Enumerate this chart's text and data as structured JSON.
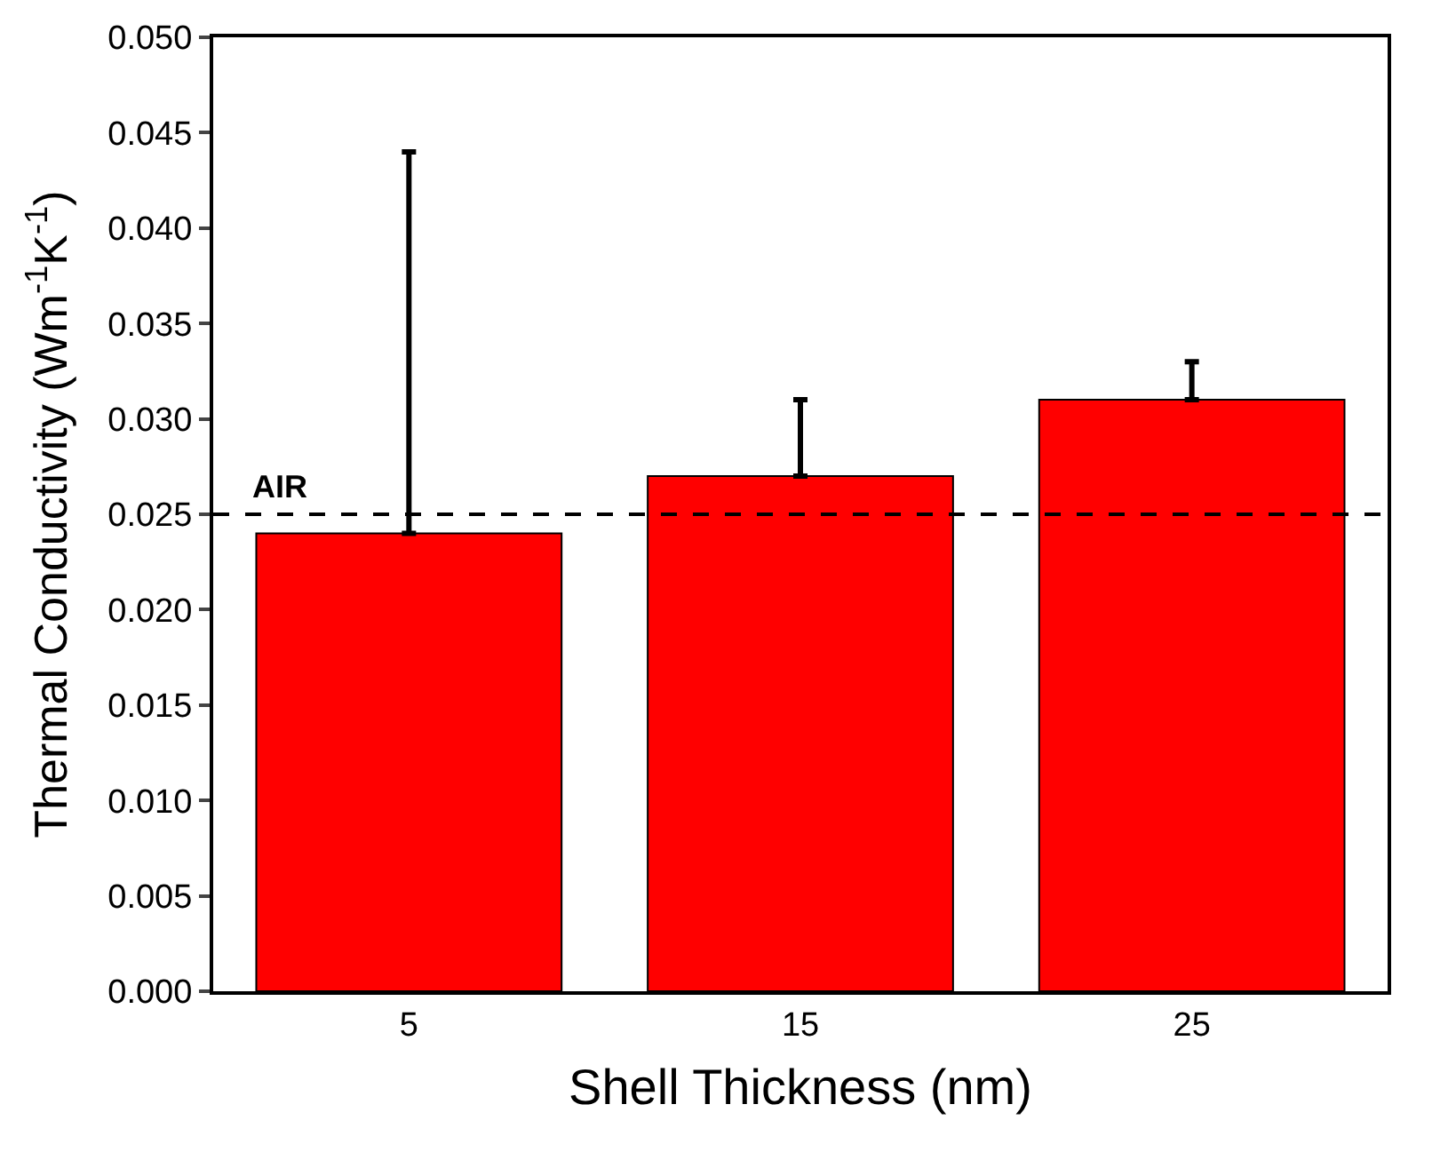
{
  "chart_data": {
    "type": "bar",
    "xlabel": "Shell Thickness (nm)",
    "ylabel": "Thermal Conductivity (Wm$^{-1}$K$^{-1}$)",
    "categories": [
      "5",
      "15",
      "25"
    ],
    "series": [
      {
        "color": "#ff0000",
        "values": [
          0.024,
          0.027,
          0.031
        ],
        "errors": [
          [
            0.024,
            0.044
          ],
          [
            0.027,
            0.031
          ],
          [
            0.031,
            0.033
          ]
        ]
      }
    ],
    "ylim": [
      0,
      0.05
    ],
    "yticks": [
      {
        "value": 0,
        "label": "0.000"
      },
      {
        "value": 0.005,
        "label": "0.005"
      },
      {
        "value": 0.01,
        "label": "0.010"
      },
      {
        "value": 0.015,
        "label": "0.015"
      },
      {
        "value": 0.02,
        "label": "0.020"
      },
      {
        "value": 0.025,
        "label": "0.025"
      },
      {
        "value": 0.03,
        "label": "0.030"
      },
      {
        "value": 0.035,
        "label": "0.035"
      },
      {
        "value": 0.04,
        "label": "0.040"
      },
      {
        "value": 0.045,
        "label": "0.045"
      },
      {
        "value": 0.05,
        "label": "0.050"
      }
    ],
    "ref_lines": [
      {
        "axis": "y",
        "value": 0.025,
        "label": "AIR",
        "color": "#000000",
        "line_style": "dashed"
      }
    ]
  }
}
